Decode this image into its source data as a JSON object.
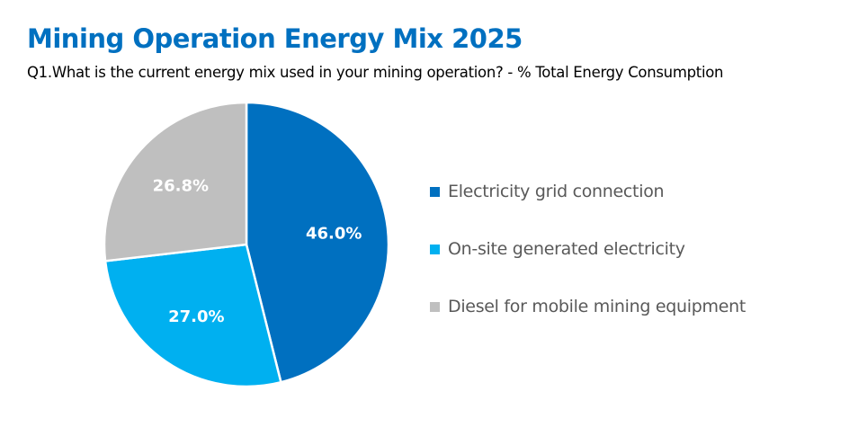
{
  "title": "Mining Operation Energy Mix 2025",
  "subtitle": "Q1.What is the current energy mix used in your mining operation? - % Total Energy Consumption",
  "chart_data": {
    "type": "pie",
    "title": "Mining Operation Energy Mix 2025",
    "subtitle": "Q1.What is the current energy mix used in your mining operation? - % Total Energy Consumption",
    "unit": "%",
    "start_angle_deg": 0,
    "direction": "clockwise",
    "legend_position": "right",
    "slices": [
      {
        "label": "Electricity grid connection",
        "value": 46.0,
        "display": "46.0%",
        "color": "#0070C0"
      },
      {
        "label": "On-site generated electricity",
        "value": 27.0,
        "display": "27.0%",
        "color": "#00B0F0"
      },
      {
        "label": "Diesel for mobile mining equipment",
        "value": 26.8,
        "display": "26.8%",
        "color": "#BFBFBF"
      }
    ]
  }
}
